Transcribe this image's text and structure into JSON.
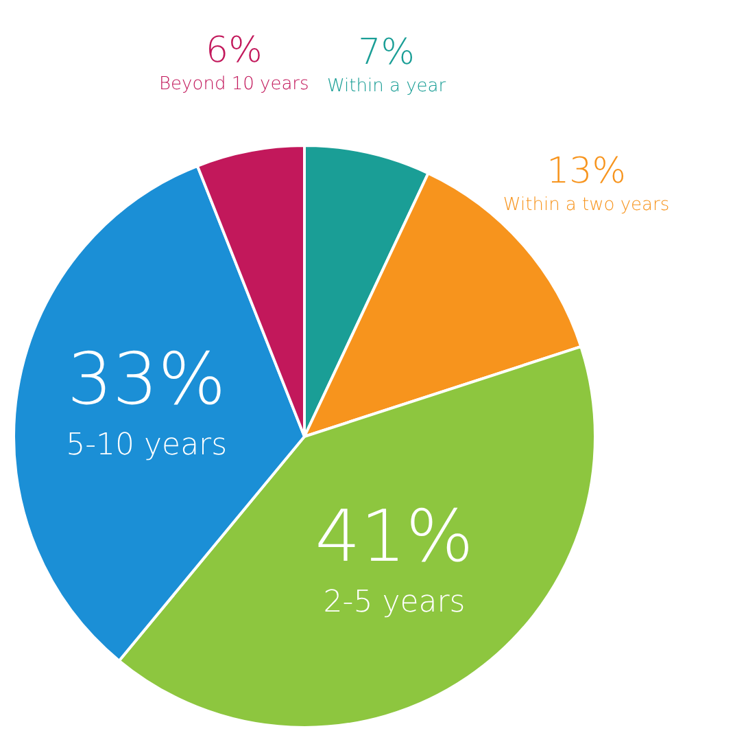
{
  "chart_data": {
    "type": "pie",
    "categories": [
      "Within a year",
      "Within a two years",
      "2-5 years",
      "5-10 years",
      "Beyond 10 years"
    ],
    "values": [
      7,
      13,
      41,
      33,
      6
    ],
    "colors": [
      "#1a9e96",
      "#f7941d",
      "#8dc63f",
      "#1b8fd6",
      "#c2185b"
    ],
    "value_labels": [
      "7%",
      "13%",
      "41%",
      "33%",
      "6%"
    ]
  }
}
